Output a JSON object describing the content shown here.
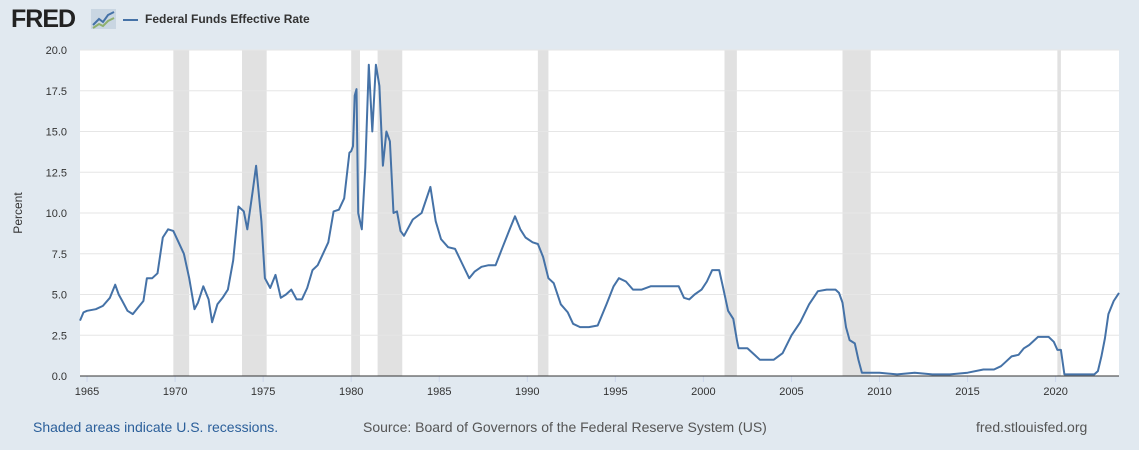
{
  "header": {
    "logo_text": "FRED",
    "logo_icon": "trend-line-icon",
    "legend_label": "Federal Funds Effective Rate"
  },
  "colors": {
    "background": "#e1e9f0",
    "plot_background": "#ffffff",
    "series_line": "#4572a7",
    "recession_shade": "#e1e1e1",
    "gridline": "#e6e6e6",
    "note_link": "#2b5f9a"
  },
  "footer": {
    "recession_note": "Shaded areas indicate U.S. recessions.",
    "source": "Source: Board of Governors of the Federal Reserve System (US)",
    "site": "fred.stlouisfed.org"
  },
  "chart_data": {
    "type": "line",
    "ylabel": "Percent",
    "xlabel": "",
    "ylim": [
      0,
      20
    ],
    "xlim": [
      1964.6,
      2023.6
    ],
    "grid": true,
    "legend": "top-left",
    "yticks": [
      "0.0",
      "2.5",
      "5.0",
      "7.5",
      "10.0",
      "12.5",
      "15.0",
      "17.5",
      "20.0"
    ],
    "xticks": [
      "1965",
      "1970",
      "1975",
      "1980",
      "1985",
      "1990",
      "1995",
      "2000",
      "2005",
      "2010",
      "2015",
      "2020"
    ],
    "recessions": [
      [
        1969.9,
        1970.8
      ],
      [
        1973.8,
        1975.2
      ],
      [
        1980.0,
        1980.5
      ],
      [
        1981.5,
        1982.9
      ],
      [
        1990.6,
        1991.2
      ],
      [
        2001.2,
        2001.9
      ],
      [
        2007.9,
        2009.5
      ],
      [
        2020.1,
        2020.3
      ]
    ],
    "series": [
      {
        "name": "Federal Funds Effective Rate",
        "x": [
          1964.6,
          1964.8,
          1965.0,
          1965.5,
          1965.9,
          1966.3,
          1966.6,
          1966.8,
          1967.0,
          1967.3,
          1967.6,
          1967.9,
          1968.2,
          1968.4,
          1968.7,
          1969.0,
          1969.3,
          1969.6,
          1969.9,
          1970.2,
          1970.5,
          1970.8,
          1971.1,
          1971.3,
          1971.6,
          1971.9,
          1972.1,
          1972.4,
          1972.7,
          1973.0,
          1973.3,
          1973.6,
          1973.9,
          1974.1,
          1974.4,
          1974.6,
          1974.9,
          1975.1,
          1975.4,
          1975.7,
          1976.0,
          1976.3,
          1976.6,
          1976.9,
          1977.2,
          1977.5,
          1977.8,
          1978.1,
          1978.4,
          1978.7,
          1979.0,
          1979.3,
          1979.6,
          1979.9,
          1980.0,
          1980.1,
          1980.2,
          1980.3,
          1980.4,
          1980.6,
          1980.8,
          1981.0,
          1981.2,
          1981.4,
          1981.6,
          1981.8,
          1982.0,
          1982.2,
          1982.4,
          1982.6,
          1982.8,
          1983.0,
          1983.5,
          1984.0,
          1984.5,
          1984.8,
          1985.1,
          1985.5,
          1985.9,
          1986.3,
          1986.7,
          1987.0,
          1987.4,
          1987.8,
          1988.2,
          1988.6,
          1989.0,
          1989.3,
          1989.6,
          1989.9,
          1990.3,
          1990.6,
          1990.9,
          1991.2,
          1991.5,
          1991.9,
          1992.3,
          1992.6,
          1993.0,
          1993.5,
          1994.0,
          1994.5,
          1994.9,
          1995.2,
          1995.6,
          1996.0,
          1996.5,
          1997.0,
          1997.5,
          1998.0,
          1998.6,
          1998.9,
          1999.2,
          1999.5,
          1999.9,
          2000.2,
          2000.5,
          2000.9,
          2001.1,
          2001.4,
          2001.7,
          2001.9,
          2002.0,
          2002.5,
          2002.9,
          2003.2,
          2003.6,
          2004.0,
          2004.5,
          2005.0,
          2005.5,
          2006.0,
          2006.5,
          2007.0,
          2007.5,
          2007.7,
          2007.9,
          2008.1,
          2008.3,
          2008.6,
          2008.8,
          2009.0,
          2009.5,
          2010.0,
          2011.0,
          2012.0,
          2013.0,
          2014.0,
          2015.0,
          2015.9,
          2016.5,
          2016.9,
          2017.2,
          2017.5,
          2017.9,
          2018.2,
          2018.5,
          2018.8,
          2019.0,
          2019.3,
          2019.6,
          2019.9,
          2020.1,
          2020.3,
          2020.5,
          2021.0,
          2021.5,
          2022.0,
          2022.2,
          2022.4,
          2022.6,
          2022.8,
          2023.0,
          2023.3,
          2023.6
        ],
        "values": [
          3.4,
          3.9,
          4.0,
          4.1,
          4.3,
          4.8,
          5.6,
          5.0,
          4.6,
          4.0,
          3.8,
          4.2,
          4.6,
          6.0,
          6.0,
          6.3,
          8.5,
          9.0,
          8.9,
          8.2,
          7.5,
          6.0,
          4.1,
          4.5,
          5.5,
          4.7,
          3.3,
          4.4,
          4.8,
          5.3,
          7.1,
          10.4,
          10.1,
          9.0,
          11.3,
          12.9,
          9.5,
          6.0,
          5.4,
          6.2,
          4.8,
          5.0,
          5.3,
          4.7,
          4.7,
          5.4,
          6.5,
          6.8,
          7.5,
          8.2,
          10.1,
          10.2,
          10.9,
          13.7,
          13.8,
          14.1,
          17.2,
          17.6,
          10.0,
          9.0,
          12.8,
          19.1,
          15.0,
          19.1,
          17.8,
          12.9,
          15.0,
          14.4,
          10.0,
          10.1,
          8.9,
          8.6,
          9.6,
          10.0,
          11.6,
          9.5,
          8.4,
          7.9,
          7.8,
          6.9,
          6.0,
          6.4,
          6.7,
          6.8,
          6.8,
          7.9,
          9.0,
          9.8,
          9.0,
          8.5,
          8.2,
          8.1,
          7.3,
          6.0,
          5.7,
          4.4,
          3.9,
          3.2,
          3.0,
          3.0,
          3.1,
          4.4,
          5.5,
          6.0,
          5.8,
          5.3,
          5.3,
          5.5,
          5.5,
          5.5,
          5.5,
          4.8,
          4.7,
          5.0,
          5.3,
          5.8,
          6.5,
          6.5,
          5.5,
          4.0,
          3.5,
          2.2,
          1.7,
          1.7,
          1.3,
          1.0,
          1.0,
          1.0,
          1.4,
          2.5,
          3.3,
          4.4,
          5.2,
          5.3,
          5.3,
          5.1,
          4.5,
          3.0,
          2.2,
          2.0,
          1.0,
          0.2,
          0.2,
          0.2,
          0.1,
          0.2,
          0.1,
          0.1,
          0.2,
          0.4,
          0.4,
          0.6,
          0.9,
          1.2,
          1.3,
          1.7,
          1.9,
          2.2,
          2.4,
          2.4,
          2.4,
          2.1,
          1.6,
          1.6,
          0.1,
          0.1,
          0.1,
          0.1,
          0.1,
          0.3,
          1.2,
          2.3,
          3.8,
          4.6,
          5.1
        ]
      }
    ]
  }
}
